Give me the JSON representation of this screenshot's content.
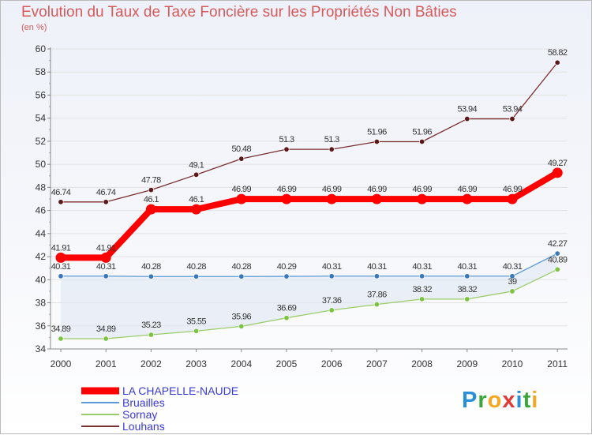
{
  "chart_data": {
    "type": "line",
    "title": "Evolution du Taux de Taxe Foncière sur les Propriétés Non Bâties",
    "ylabel": "(en %)",
    "ylim": [
      34,
      60
    ],
    "yticks": [
      34,
      36,
      38,
      40,
      42,
      44,
      46,
      48,
      50,
      52,
      54,
      56,
      58,
      60
    ],
    "categories": [
      "2000",
      "2001",
      "2002",
      "2003",
      "2004",
      "2005",
      "2006",
      "2007",
      "2008",
      "2009",
      "2010",
      "2011"
    ],
    "series": [
      {
        "name": "Louhans",
        "color": "#7a2f2f",
        "marker": "#5a1a1a",
        "values": [
          46.74,
          46.74,
          47.78,
          49.1,
          50.48,
          51.3,
          51.3,
          51.96,
          51.96,
          53.94,
          53.94,
          58.82
        ],
        "labels": [
          "46.74",
          "46.74",
          "47.78",
          "49.1",
          "50.48",
          "51.3",
          "51.3",
          "51.96",
          "51.96",
          "53.94",
          "53.94",
          "58.82"
        ]
      },
      {
        "name": "Bruailles",
        "color": "#5b9bd5",
        "marker": "#3a78b8",
        "values": [
          40.31,
          40.31,
          40.28,
          40.28,
          40.28,
          40.29,
          40.31,
          40.31,
          40.31,
          40.31,
          40.31,
          42.27
        ],
        "labels": [
          "40.31",
          "40.31",
          "40.28",
          "40.28",
          "40.28",
          "40.29",
          "40.31",
          "40.31",
          "40.31",
          "40.31",
          "40.31",
          "42.27"
        ]
      },
      {
        "name": "Sornay",
        "color": "#9acd6a",
        "marker": "#7cc243",
        "values": [
          34.89,
          34.89,
          35.23,
          35.55,
          35.96,
          36.69,
          37.36,
          37.86,
          38.32,
          38.32,
          39,
          40.89
        ],
        "labels": [
          "34.89",
          "34.89",
          "35.23",
          "35.55",
          "35.96",
          "36.69",
          "37.36",
          "37.86",
          "38.32",
          "38.32",
          "39",
          "40.89"
        ]
      },
      {
        "name": "LA CHAPELLE-NAUDE",
        "color": "#ff0000",
        "marker": "#ff0000",
        "values": [
          41.91,
          41.91,
          46.1,
          46.1,
          46.99,
          46.99,
          46.99,
          46.99,
          46.99,
          46.99,
          46.99,
          49.27
        ],
        "labels": [
          "41.91",
          "41.91",
          "46.1",
          "46.1",
          "46.99",
          "46.99",
          "46.99",
          "46.99",
          "46.99",
          "46.99",
          "46.99",
          "49.27"
        ]
      }
    ],
    "legend": [
      "LA CHAPELLE-NAUDE",
      "Bruailles",
      "Sornay",
      "Louhans"
    ],
    "legend_position": "bottom-left"
  },
  "brand": {
    "letters": [
      "P",
      "r",
      "o",
      "x",
      "i",
      "t",
      "i"
    ],
    "colors": [
      "#2a8fd6",
      "#3aa63a",
      "#f5a623",
      "#e03a3a",
      "#2a8fd6",
      "#3aa63a",
      "#f5a623"
    ]
  }
}
